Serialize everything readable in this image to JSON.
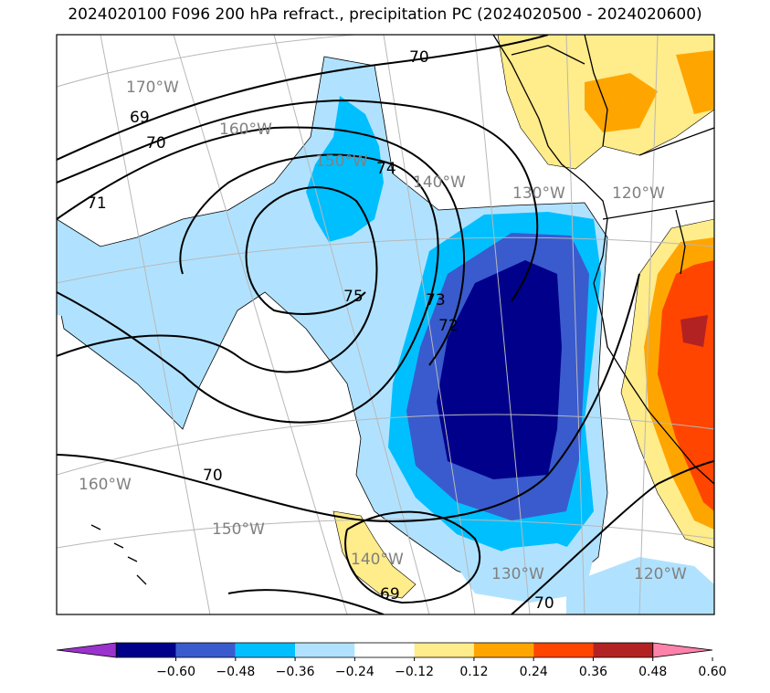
{
  "title": "2024020100 F096 200 hPa refract., precipitation PC (2024020500 - 2024020600)",
  "longitude_labels": [
    "170°W",
    "160°W",
    "150°W",
    "140°W",
    "130°W",
    "120°W",
    "160°W",
    "150°W",
    "140°W",
    "130°W",
    "120°W"
  ],
  "contour_labels": [
    "70",
    "69",
    "70",
    "71",
    "74",
    "75",
    "73",
    "72",
    "70",
    "69",
    "70"
  ],
  "colorbar": {
    "ticks": [
      "−0.60",
      "−0.48",
      "−0.36",
      "−0.24",
      "−0.12",
      "0.12",
      "0.24",
      "0.36",
      "0.48",
      "0.60"
    ],
    "colors": [
      "#9a32cd",
      "#00008b",
      "#3a5bcd",
      "#00bfff",
      "#b0e2ff",
      "#ffffff",
      "#ffec8b",
      "#ffa500",
      "#ff4500",
      "#b22222",
      "#ff82ab"
    ]
  }
}
